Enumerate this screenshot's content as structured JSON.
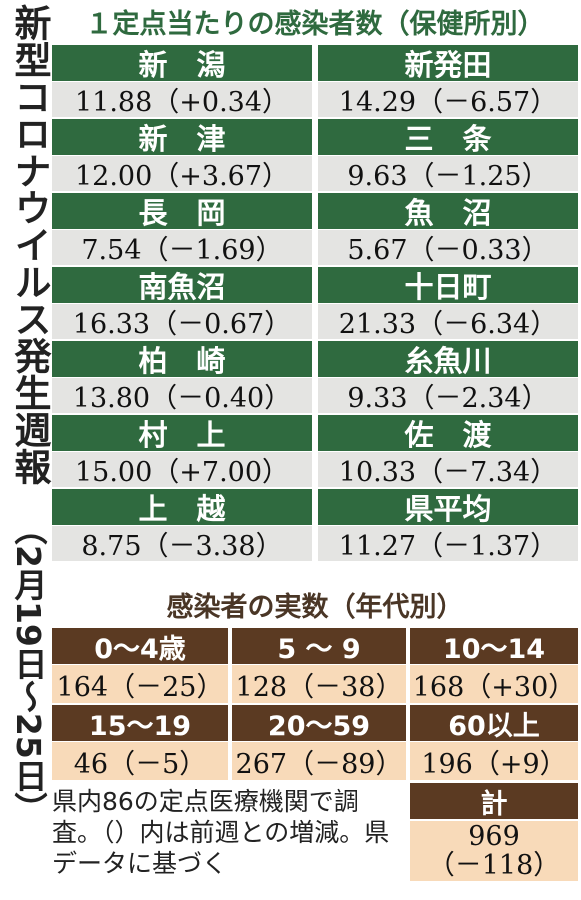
{
  "header": {
    "title": "新型コロナウイルス発生週報",
    "period": "（2月19日～25日）"
  },
  "section1": {
    "title": "１定点当たりの感染者数（保健所別）",
    "rows": [
      {
        "name": "新　潟",
        "value": "11.88（+0.34）"
      },
      {
        "name": "新発田",
        "value": "14.29（－6.57）"
      },
      {
        "name": "新　津",
        "value": "12.00（+3.67）"
      },
      {
        "name": "三　条",
        "value": "9.63（－1.25）"
      },
      {
        "name": "長　岡",
        "value": "7.54（－1.69）"
      },
      {
        "name": "魚　沼",
        "value": "5.67（－0.33）"
      },
      {
        "name": "南魚沼",
        "value": "16.33（－0.67）"
      },
      {
        "name": "十日町",
        "value": "21.33（－6.34）"
      },
      {
        "name": "柏　崎",
        "value": "13.80（－0.40）"
      },
      {
        "name": "糸魚川",
        "value": "9.33（－2.34）"
      },
      {
        "name": "村　上",
        "value": "15.00（+7.00）"
      },
      {
        "name": "佐　渡",
        "value": "10.33（－7.34）"
      },
      {
        "name": "上　越",
        "value": "8.75（－3.38）"
      },
      {
        "name": "県平均",
        "value": "11.27（－1.37）"
      }
    ]
  },
  "section2": {
    "title": "感染者の実数（年代別）",
    "groups": [
      {
        "label": "0～4歳",
        "value": "164（－25）"
      },
      {
        "label": "5 ～ 9",
        "value": "128（－38）"
      },
      {
        "label": "10～14",
        "value": "168（+30）"
      },
      {
        "label": "15～19",
        "value": "46（－5）"
      },
      {
        "label": "20～59",
        "value": "267（－89）"
      },
      {
        "label": "60以上",
        "value": "196（+9）"
      }
    ],
    "total": {
      "label": "計",
      "value": "969",
      "change": "（－118）"
    }
  },
  "note": "県内86の定点医療機関で調査。（）内は前週との増減。県データに基づく"
}
